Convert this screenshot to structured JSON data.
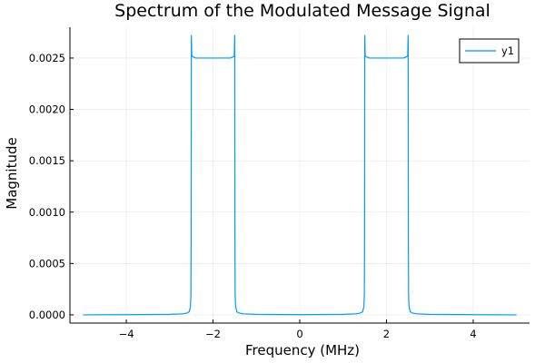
{
  "chart_data": {
    "type": "line",
    "title": "Spectrum of the Modulated Message Signal",
    "xlabel": "Frequency (MHz)",
    "ylabel": "Magnitude",
    "xlim": [
      -5.3,
      5.3
    ],
    "ylim": [
      -8e-05,
      0.0028
    ],
    "xticks": [
      -4,
      -2,
      0,
      2,
      4
    ],
    "xtick_labels": [
      "−4",
      "−2",
      "0",
      "2",
      "4"
    ],
    "yticks": [
      0,
      0.0005,
      0.001,
      0.0015,
      0.002,
      0.0025
    ],
    "ytick_labels": [
      "0.0000",
      "0.0005",
      "0.0010",
      "0.0015",
      "0.0020",
      "0.0025"
    ],
    "grid": true,
    "legend_position": "top-right",
    "series": [
      {
        "name": "y1",
        "color": "#009AFA",
        "x": [
          -5.0,
          -4.0,
          -3.0,
          -2.7,
          -2.6,
          -2.55,
          -2.52,
          -2.51,
          -2.505,
          -2.5,
          -2.49,
          -2.45,
          -2.4,
          -2.3,
          -2.2,
          -2.0,
          -1.8,
          -1.7,
          -1.6,
          -1.55,
          -1.51,
          -1.5,
          -1.495,
          -1.49,
          -1.48,
          -1.45,
          -1.4,
          -1.3,
          -1.0,
          0.0,
          1.0,
          1.3,
          1.4,
          1.45,
          1.48,
          1.49,
          1.495,
          1.5,
          1.51,
          1.55,
          1.6,
          1.7,
          1.8,
          2.0,
          2.2,
          2.3,
          2.4,
          2.45,
          2.49,
          2.5,
          2.505,
          2.51,
          2.52,
          2.55,
          2.6,
          2.7,
          3.0,
          4.0,
          5.0
        ],
        "y": [
          0.0,
          2e-06,
          5e-06,
          1e-05,
          1.8e-05,
          3e-05,
          8e-05,
          0.0002,
          0.0008,
          0.00272,
          0.00252,
          0.00251,
          0.0025,
          0.0025,
          0.0025,
          0.0025,
          0.0025,
          0.0025,
          0.0025,
          0.00251,
          0.00252,
          0.00272,
          0.0008,
          0.0002,
          8e-05,
          3e-05,
          1.8e-05,
          1e-05,
          5e-06,
          2e-06,
          5e-06,
          1e-05,
          1.8e-05,
          3e-05,
          8e-05,
          0.0002,
          0.0008,
          0.00272,
          0.00252,
          0.00251,
          0.0025,
          0.0025,
          0.0025,
          0.0025,
          0.0025,
          0.0025,
          0.0025,
          0.00251,
          0.00252,
          0.00272,
          0.0008,
          0.0002,
          8e-05,
          3e-05,
          1.8e-05,
          1e-05,
          5e-06,
          2e-06,
          0.0
        ]
      }
    ]
  }
}
